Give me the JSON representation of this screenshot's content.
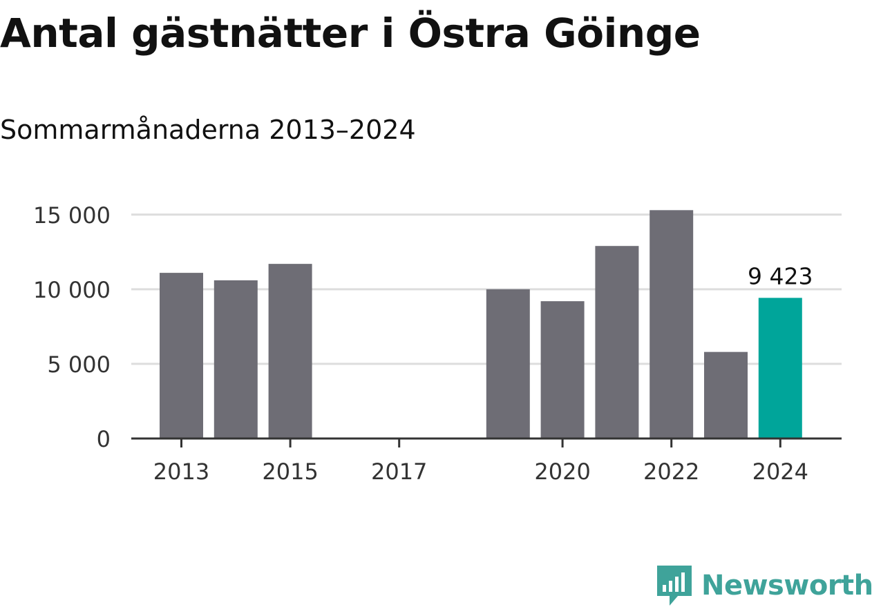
{
  "chart_data": {
    "type": "bar",
    "title": "Antal gästnätter i Östra Göinge",
    "subtitle": "Sommarmånaderna 2013–2024",
    "xlabel": "",
    "ylabel": "",
    "categories": [
      "2013",
      "2014",
      "2015",
      "2016",
      "2017",
      "2018",
      "2019",
      "2020",
      "2021",
      "2022",
      "2023",
      "2024"
    ],
    "values": [
      11100,
      10600,
      11700,
      null,
      null,
      null,
      10000,
      9200,
      12900,
      15300,
      5800,
      9423
    ],
    "x_tick_labels": [
      "2013",
      "2015",
      "2017",
      "2020",
      "2022",
      "2024"
    ],
    "y_tick_values": [
      0,
      5000,
      10000,
      15000
    ],
    "y_tick_labels": [
      "0",
      "5 000",
      "10 000",
      "15 000"
    ],
    "ylim": [
      0,
      15500
    ],
    "grid": true,
    "highlight": {
      "category": "2024",
      "label": "9 423"
    },
    "colors": {
      "bar": "#6e6d75",
      "highlight": "#00a59a",
      "grid": "#dddddd",
      "axis": "#333333"
    }
  },
  "brand": {
    "name": "Newsworthy",
    "icon": "newsworthy-logo-icon",
    "color": "#3fa39a"
  }
}
